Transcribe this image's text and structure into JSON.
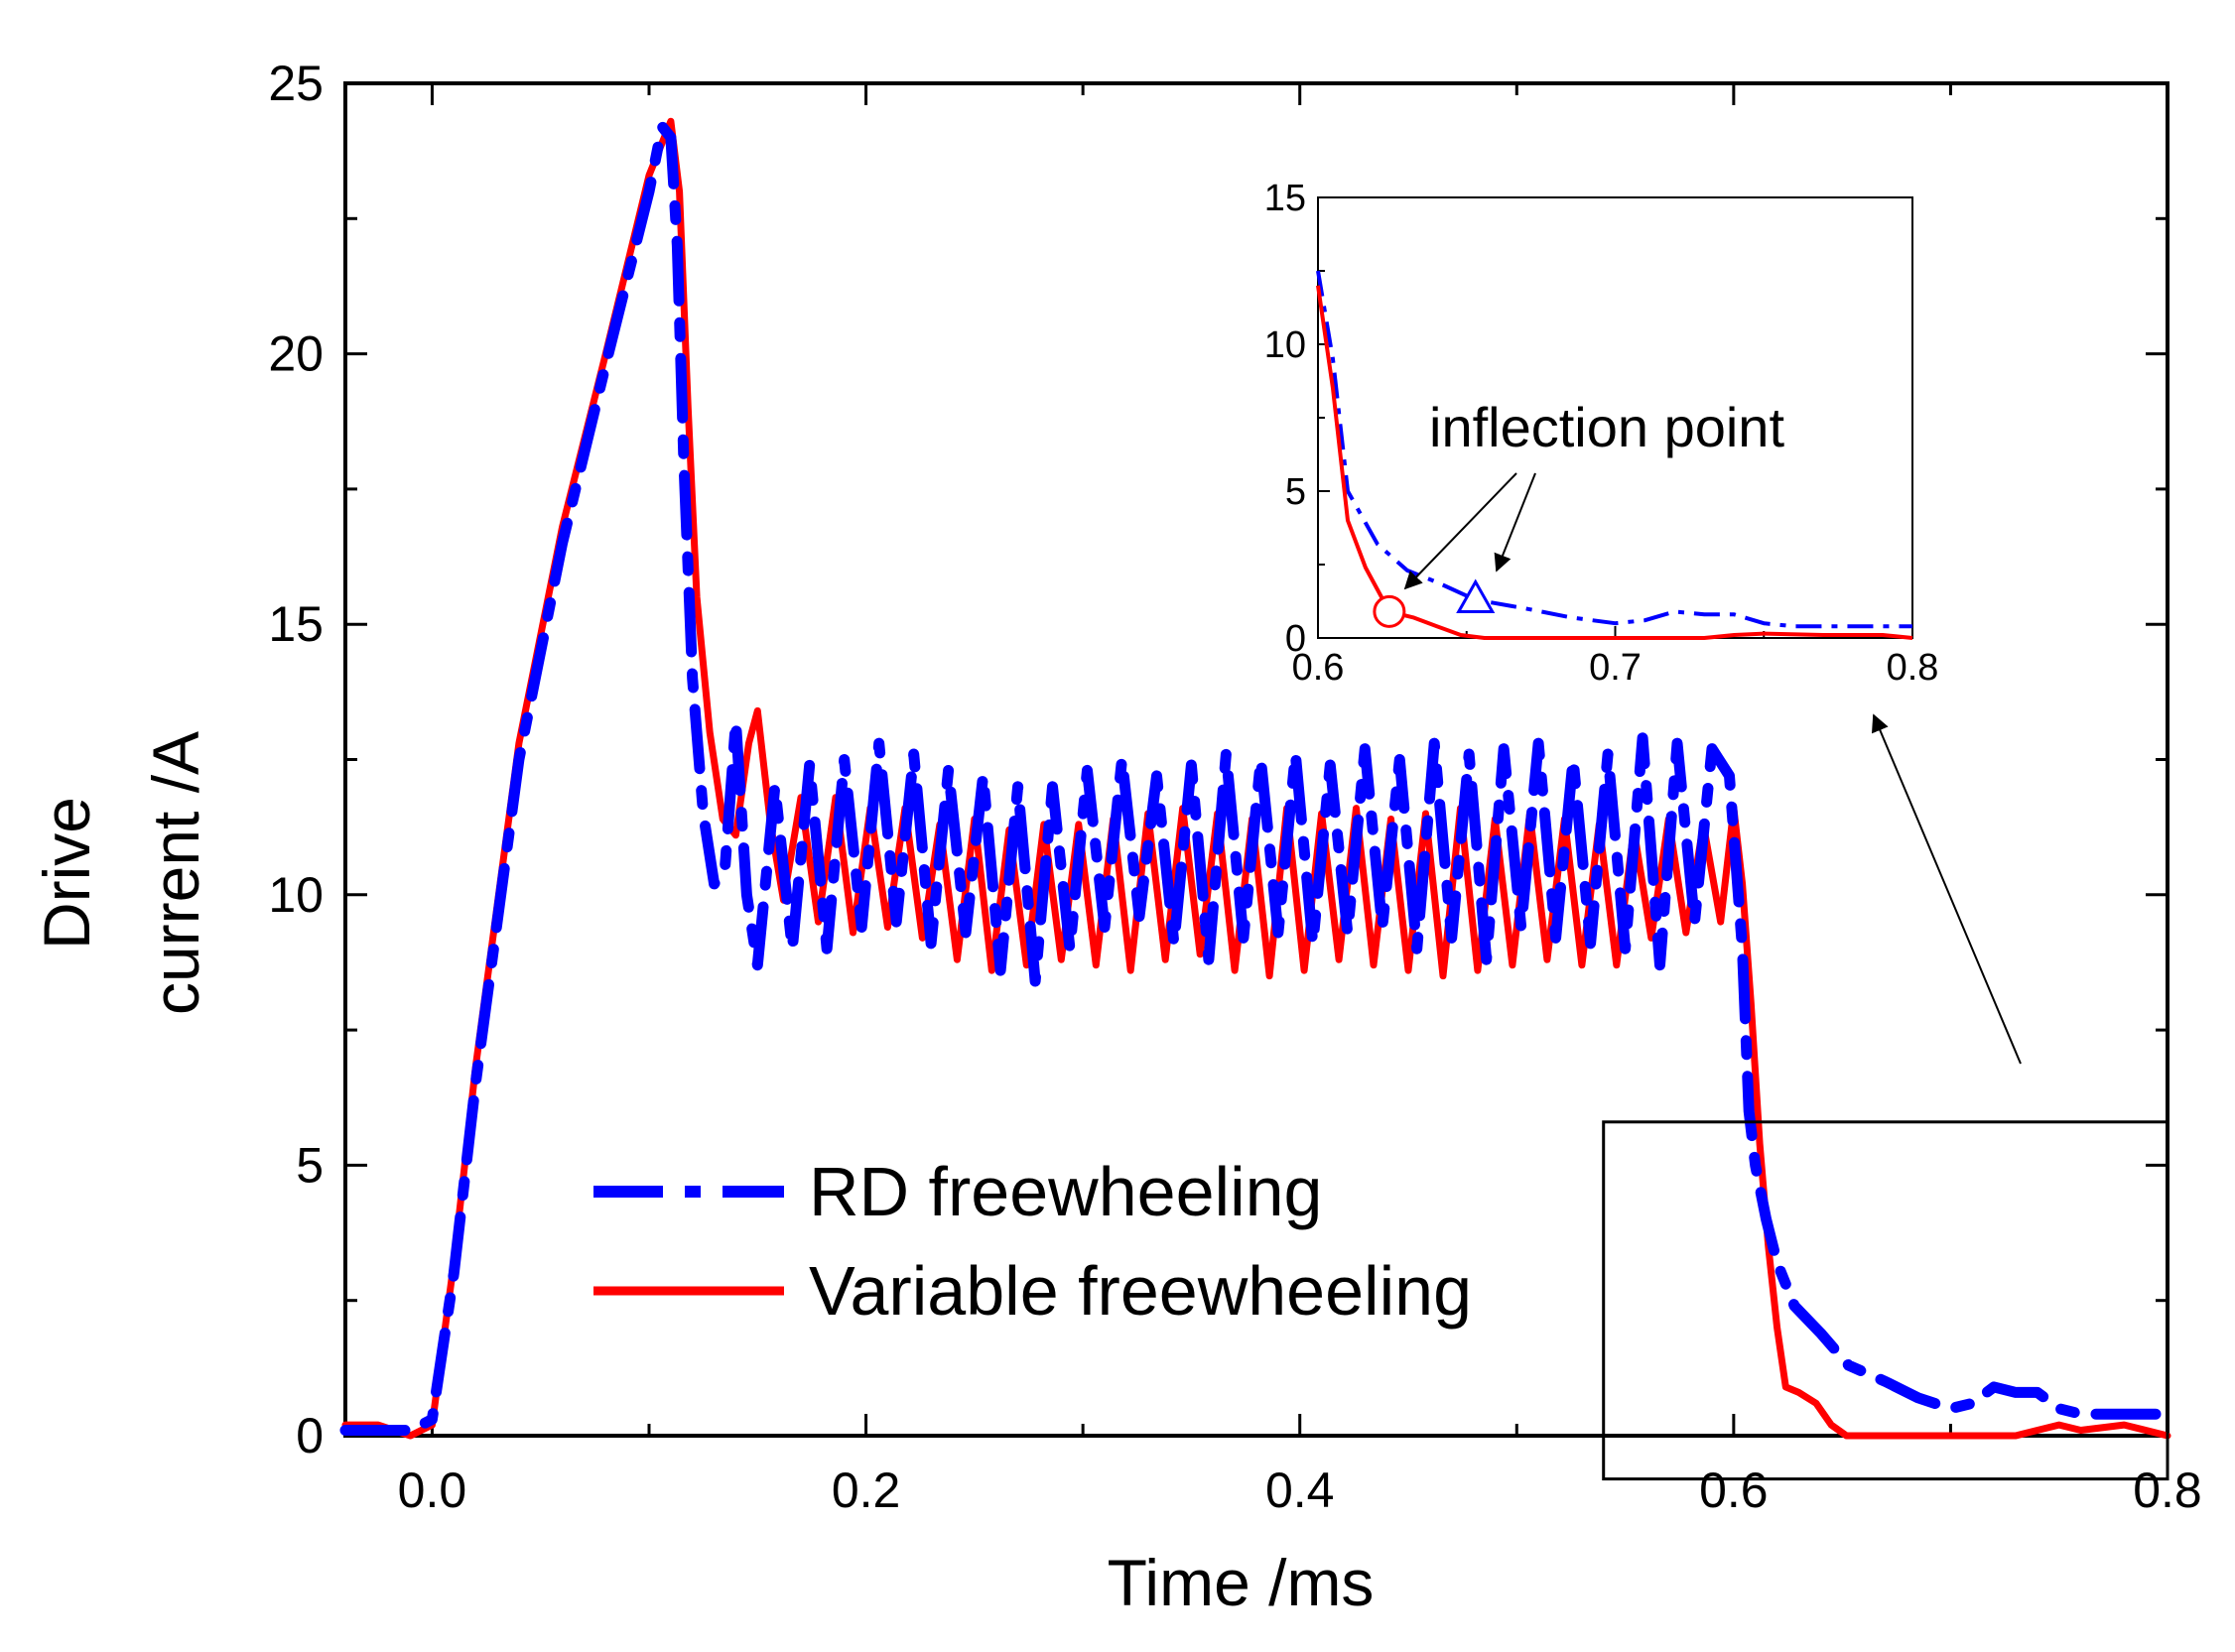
{
  "chart_data": [
    {
      "type": "line",
      "title": "",
      "xlabel": "Time /ms",
      "ylabel_lines": [
        "Drive",
        "current /A"
      ],
      "xlim": [
        -0.04,
        0.8
      ],
      "ylim": [
        0,
        25
      ],
      "x_ticks": [
        0.0,
        0.2,
        0.4,
        0.6,
        0.8
      ],
      "x_tick_labels": [
        "0.0",
        "0.2",
        "0.4",
        "0.6",
        "0.8"
      ],
      "y_ticks": [
        0,
        5,
        10,
        15,
        20,
        25
      ],
      "y_tick_labels": [
        "0",
        "5",
        "10",
        "15",
        "20",
        "25"
      ],
      "grid": false,
      "legend_placement": "bottom-center",
      "series": [
        {
          "name": "RD freewheeling",
          "color": "#0000ff",
          "style": "dash-dot",
          "points": [
            [
              -0.04,
              0.1
            ],
            [
              -0.01,
              0.1
            ],
            [
              0.0,
              0.3
            ],
            [
              0.01,
              3
            ],
            [
              0.02,
              6.5
            ],
            [
              0.04,
              12.5
            ],
            [
              0.06,
              16.5
            ],
            [
              0.08,
              19.8
            ],
            [
              0.1,
              23
            ],
            [
              0.106,
              24.2
            ],
            [
              0.11,
              24
            ],
            [
              0.113,
              22
            ],
            [
              0.116,
              18
            ],
            [
              0.12,
              14
            ],
            [
              0.125,
              11.5
            ],
            [
              0.13,
              10.2
            ],
            [
              0.135,
              10.5
            ],
            [
              0.14,
              13.2
            ],
            [
              0.145,
              10
            ],
            [
              0.15,
              8.7
            ],
            [
              0.158,
              12
            ],
            [
              0.166,
              9
            ],
            [
              0.174,
              12.4
            ],
            [
              0.182,
              9
            ],
            [
              0.19,
              12.5
            ],
            [
              0.198,
              9.4
            ],
            [
              0.206,
              12.8
            ],
            [
              0.214,
              9.5
            ],
            [
              0.222,
              12.6
            ],
            [
              0.23,
              9.1
            ],
            [
              0.238,
              12.3
            ],
            [
              0.246,
              9.3
            ],
            [
              0.254,
              12.2
            ],
            [
              0.262,
              8.6
            ],
            [
              0.27,
              12
            ],
            [
              0.278,
              8.4
            ],
            [
              0.286,
              12
            ],
            [
              0.294,
              9
            ],
            [
              0.302,
              12.3
            ],
            [
              0.31,
              9.4
            ],
            [
              0.318,
              12.5
            ],
            [
              0.326,
              9.6
            ],
            [
              0.334,
              12.2
            ],
            [
              0.342,
              9.1
            ],
            [
              0.35,
              12.4
            ],
            [
              0.358,
              8.8
            ],
            [
              0.366,
              12.6
            ],
            [
              0.374,
              9.2
            ],
            [
              0.382,
              12.5
            ],
            [
              0.39,
              9.3
            ],
            [
              0.398,
              12.6
            ],
            [
              0.406,
              9.1
            ],
            [
              0.414,
              12.4
            ],
            [
              0.422,
              9.3
            ],
            [
              0.43,
              12.7
            ],
            [
              0.438,
              9.4
            ],
            [
              0.446,
              12.5
            ],
            [
              0.454,
              9
            ],
            [
              0.462,
              12.8
            ],
            [
              0.47,
              9.2
            ],
            [
              0.478,
              12.6
            ],
            [
              0.486,
              8.8
            ],
            [
              0.494,
              12.7
            ],
            [
              0.502,
              9.4
            ],
            [
              0.51,
              12.8
            ],
            [
              0.518,
              9.2
            ],
            [
              0.526,
              12.5
            ],
            [
              0.534,
              9.1
            ],
            [
              0.542,
              12.6
            ],
            [
              0.55,
              9
            ],
            [
              0.558,
              12.9
            ],
            [
              0.566,
              8.7
            ],
            [
              0.574,
              12.8
            ],
            [
              0.582,
              9.5
            ],
            [
              0.59,
              12.7
            ],
            [
              0.598,
              12.2
            ],
            [
              0.604,
              9
            ],
            [
              0.607,
              6
            ],
            [
              0.61,
              5
            ],
            [
              0.615,
              4
            ],
            [
              0.62,
              3.2
            ],
            [
              0.628,
              2.4
            ],
            [
              0.64,
              1.9
            ],
            [
              0.653,
              1.3
            ],
            [
              0.67,
              1
            ],
            [
              0.685,
              0.7
            ],
            [
              0.7,
              0.5
            ],
            [
              0.71,
              0.6
            ],
            [
              0.72,
              0.9
            ],
            [
              0.73,
              0.8
            ],
            [
              0.74,
              0.8
            ],
            [
              0.75,
              0.5
            ],
            [
              0.76,
              0.4
            ],
            [
              0.8,
              0.4
            ]
          ]
        },
        {
          "name": "Variable freewheeling",
          "color": "#ff0000",
          "style": "solid",
          "points": [
            [
              -0.04,
              0.2
            ],
            [
              -0.025,
              0.2
            ],
            [
              -0.01,
              0
            ],
            [
              0.0,
              0.2
            ],
            [
              0.01,
              3.2
            ],
            [
              0.02,
              6.8
            ],
            [
              0.04,
              12.8
            ],
            [
              0.06,
              16.8
            ],
            [
              0.08,
              20
            ],
            [
              0.1,
              23.3
            ],
            [
              0.11,
              24.3
            ],
            [
              0.114,
              23
            ],
            [
              0.118,
              19
            ],
            [
              0.122,
              15.5
            ],
            [
              0.128,
              13
            ],
            [
              0.134,
              11.4
            ],
            [
              0.14,
              11.1
            ],
            [
              0.146,
              12.8
            ],
            [
              0.15,
              13.4
            ],
            [
              0.156,
              11.3
            ],
            [
              0.162,
              9.9
            ],
            [
              0.17,
              11.8
            ],
            [
              0.178,
              9.5
            ],
            [
              0.186,
              11.8
            ],
            [
              0.194,
              9.3
            ],
            [
              0.202,
              11.6
            ],
            [
              0.21,
              9.4
            ],
            [
              0.218,
              11.6
            ],
            [
              0.226,
              9.2
            ],
            [
              0.234,
              11.3
            ],
            [
              0.242,
              8.8
            ],
            [
              0.25,
              11.4
            ],
            [
              0.258,
              8.6
            ],
            [
              0.266,
              11.2
            ],
            [
              0.274,
              8.7
            ],
            [
              0.282,
              11.3
            ],
            [
              0.29,
              8.8
            ],
            [
              0.298,
              11.3
            ],
            [
              0.306,
              8.7
            ],
            [
              0.314,
              11.4
            ],
            [
              0.322,
              8.6
            ],
            [
              0.33,
              11.5
            ],
            [
              0.338,
              8.8
            ],
            [
              0.346,
              11.6
            ],
            [
              0.354,
              8.9
            ],
            [
              0.362,
              11.5
            ],
            [
              0.37,
              8.6
            ],
            [
              0.378,
              11.4
            ],
            [
              0.386,
              8.5
            ],
            [
              0.394,
              11.6
            ],
            [
              0.402,
              8.6
            ],
            [
              0.41,
              11.5
            ],
            [
              0.418,
              8.8
            ],
            [
              0.426,
              11.6
            ],
            [
              0.434,
              8.7
            ],
            [
              0.442,
              11.4
            ],
            [
              0.45,
              8.6
            ],
            [
              0.458,
              11.5
            ],
            [
              0.466,
              8.5
            ],
            [
              0.474,
              11.6
            ],
            [
              0.482,
              8.6
            ],
            [
              0.49,
              11.4
            ],
            [
              0.498,
              8.7
            ],
            [
              0.506,
              11.5
            ],
            [
              0.514,
              8.8
            ],
            [
              0.522,
              11.4
            ],
            [
              0.53,
              8.7
            ],
            [
              0.538,
              11.3
            ],
            [
              0.546,
              8.7
            ],
            [
              0.554,
              11.2
            ],
            [
              0.562,
              9.2
            ],
            [
              0.57,
              11.4
            ],
            [
              0.578,
              9.3
            ],
            [
              0.586,
              11.3
            ],
            [
              0.594,
              9.5
            ],
            [
              0.6,
              11.6
            ],
            [
              0.604,
              10.2
            ],
            [
              0.608,
              8
            ],
            [
              0.612,
              5.4
            ],
            [
              0.616,
              3.5
            ],
            [
              0.62,
              2
            ],
            [
              0.624,
              0.9
            ],
            [
              0.63,
              0.8
            ],
            [
              0.638,
              0.6
            ],
            [
              0.645,
              0.2
            ],
            [
              0.652,
              0
            ],
            [
              0.7,
              0
            ],
            [
              0.73,
              0
            ],
            [
              0.74,
              0.1
            ],
            [
              0.75,
              0.2
            ],
            [
              0.76,
              0.1
            ],
            [
              0.78,
              0.2
            ],
            [
              0.8,
              0
            ]
          ]
        }
      ],
      "zoom_box": {
        "x_range": [
          0.54,
          0.8
        ],
        "y_range": [
          -0.8,
          5.8
        ]
      }
    },
    {
      "type": "line",
      "title": "",
      "xlim": [
        0.6,
        0.8
      ],
      "ylim": [
        0,
        15
      ],
      "x_ticks": [
        0.6,
        0.7,
        0.8
      ],
      "x_tick_labels": [
        "0.6",
        "0.7",
        "0.8"
      ],
      "y_ticks": [
        0,
        5,
        10,
        15
      ],
      "y_tick_labels": [
        "0",
        "5",
        "10",
        "15"
      ],
      "grid": false,
      "annotation": "inflection point",
      "markers": [
        {
          "series": "Variable freewheeling",
          "shape": "circle",
          "x": 0.624,
          "y": 0.9
        },
        {
          "series": "RD freewheeling",
          "shape": "triangle",
          "x": 0.653,
          "y": 1.3
        }
      ],
      "series": [
        {
          "name": "RD freewheeling",
          "color": "#0000ff",
          "style": "dash-dot",
          "points": [
            [
              0.6,
              12.5
            ],
            [
              0.605,
              9.5
            ],
            [
              0.61,
              5
            ],
            [
              0.62,
              3.2
            ],
            [
              0.63,
              2.3
            ],
            [
              0.64,
              1.9
            ],
            [
              0.653,
              1.3
            ],
            [
              0.67,
              1
            ],
            [
              0.685,
              0.7
            ],
            [
              0.7,
              0.5
            ],
            [
              0.71,
              0.6
            ],
            [
              0.72,
              0.9
            ],
            [
              0.73,
              0.8
            ],
            [
              0.74,
              0.8
            ],
            [
              0.75,
              0.5
            ],
            [
              0.76,
              0.4
            ],
            [
              0.8,
              0.4
            ]
          ]
        },
        {
          "name": "Variable freewheeling",
          "color": "#ff0000",
          "style": "solid",
          "points": [
            [
              0.6,
              12
            ],
            [
              0.605,
              8.5
            ],
            [
              0.61,
              4
            ],
            [
              0.616,
              2.4
            ],
            [
              0.624,
              0.9
            ],
            [
              0.632,
              0.7
            ],
            [
              0.64,
              0.4
            ],
            [
              0.648,
              0.1
            ],
            [
              0.656,
              0
            ],
            [
              0.7,
              0
            ],
            [
              0.73,
              0
            ],
            [
              0.74,
              0.1
            ],
            [
              0.75,
              0.15
            ],
            [
              0.77,
              0.1
            ],
            [
              0.79,
              0.1
            ],
            [
              0.8,
              0
            ]
          ]
        }
      ]
    }
  ]
}
